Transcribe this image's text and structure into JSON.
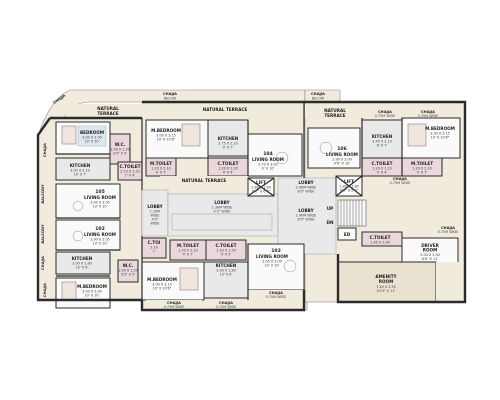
{
  "plan": {
    "chajja_belo_left": {
      "label": "CHAJJA",
      "sub": "BELOW"
    },
    "chajja_belo_right": {
      "label": "CHAJJA",
      "sub": "BELOW"
    },
    "natural_terrace_left": {
      "l1": "NATURAL",
      "l2": "TERRACE"
    },
    "natural_terrace_top": {
      "l1": "NATURAL TERRACE"
    },
    "natural_terrace_right": {
      "l1": "NATURAL",
      "l2": "TERRACE"
    },
    "natural_terrace_mid": {
      "l1": "NATURAL TERRACE"
    },
    "chajja_tl_vertical": "CHAJJA",
    "chajja_tr_1": {
      "label": "CHAJJA",
      "dim": "0.75M WIDE"
    },
    "chajja_tr_2": {
      "label": "CHAJJA",
      "dim": "0.75M WIDE"
    },
    "chajja_r_mid": {
      "label": "CHAJJA",
      "dim": "0.75M WIDE"
    },
    "chajja_r_low": {
      "label": "CHAJJA",
      "dim": "0.75M WIDE"
    },
    "chajja_bl_1": {
      "label": "CHAJJA",
      "dim": "0.75M WIDE"
    },
    "chajja_bl_2": {
      "label": "CHAJJA",
      "dim": "0.75M WIDE"
    },
    "chajja_b_3": {
      "label": "CHAJJA",
      "dim": "0.75M WIDE"
    },
    "left_vertical_labels": [
      "CHAJJA",
      "BALCONY",
      "BALCONY",
      "CHAJJA",
      "CHAJJA"
    ],
    "rooms": {
      "bedroom_105": {
        "name": "BEDROOM",
        "dim": "3.00 X 3.05",
        "imp": "10' X 10'"
      },
      "kitchen_105": {
        "name": "KITCHEN",
        "dim": "3.00 X 2.10",
        "imp": "10' X 7'"
      },
      "living_105": {
        "name": "LIVING ROOM",
        "dim": "3.90 X 3.05",
        "imp": "13' X 10'"
      },
      "living_102": {
        "name": "LIVING ROOM",
        "dim": "3.90 X 3.05",
        "imp": "13' X 10'"
      },
      "kitchen_102": {
        "name": "KITCHEN",
        "dim": "3.00 X 1.80",
        "imp": "10' X 6'"
      },
      "mbed_102": {
        "name": "M.BEDROOM",
        "dim": "3.00 X 3.00",
        "imp": "10' X 10'"
      },
      "wc_105": {
        "name": "W.C.",
        "dim": "1.00 X 1.50",
        "imp": "3'3\" X 5'"
      },
      "wc_102": {
        "name": "W.C.",
        "dim": "1.00 X 1.50",
        "imp": "3'3\" X 5'"
      },
      "ctoilet_105": {
        "name": "C.TOILET",
        "dim": "2.10 X 1.20",
        "imp": "7' X 4'"
      },
      "ctoilet_102": {
        "name": "C.TOI",
        "dim": "2.10",
        "imp": "7'"
      },
      "mbed_104": {
        "name": "M.BEDROOM",
        "dim": "3.00 X 3.15",
        "imp": "10' X 10'6\""
      },
      "kitchen_104": {
        "name": "KITCHEN",
        "dim": "2.75 X 2.10",
        "imp": "9' X 7'"
      },
      "living_104": {
        "name": "LIVING ROOM",
        "dim": "2.70 X 3.00",
        "imp": "9' X 10'"
      },
      "mtoilet_104": {
        "name": "M.TOILET",
        "dim": "1.20 X 2.10",
        "imp": "4' X 7'"
      },
      "ctoilet_104": {
        "name": "C.TOILET",
        "dim": "1.20 X 1.20",
        "imp": "4' X 4'"
      },
      "mbed_103": {
        "name": "M.BEDROOM",
        "dim": "3.00 X 3.15",
        "imp": "10' X 10'6\""
      },
      "kitchen_103": {
        "name": "KITCHEN",
        "dim": "3.00 X 1.80",
        "imp": "10' X 6'"
      },
      "living_103": {
        "name": "LIVING ROOM",
        "dim": "3.05 X 3.00",
        "imp": "10' X 10'"
      },
      "mtoilet_103": {
        "name": "M.TOILET",
        "dim": "1.20 X 2.10",
        "imp": "4' X 7'"
      },
      "ctoilet_103": {
        "name": "C.TOILET",
        "dim": "1.20 X 1.50",
        "imp": "4' X 5'"
      },
      "mbed_106": {
        "name": "M.BEDROOM",
        "dim": "3.00 X 3.15",
        "imp": "10' X 10'6\""
      },
      "kitchen_106": {
        "name": "KITCHEN",
        "dim": "2.45 X 2.10",
        "imp": "8' X 7'"
      },
      "living_106": {
        "name": "LIVING ROOM",
        "dim": "2.90 X 3.00",
        "imp": "9'6\" X 10'"
      },
      "ctoilet_106": {
        "name": "C.TOILET",
        "dim": "1.20 X 1.20",
        "imp": "4' X 4'"
      },
      "mtoilet_106": {
        "name": "M.TOILET",
        "dim": "1.20 X 2.10",
        "imp": "4' X 7'"
      },
      "ctoilet_right": {
        "name": "C.TOILET",
        "dim": "1.45 X 1.40",
        "imp": ""
      },
      "driver_room": {
        "name": "DRIVER",
        "name2": "ROOM",
        "dim": "2.00 X 3.30",
        "imp": "6'6\" X 11'"
      },
      "amenity_room": {
        "name": "AMENITY",
        "name2": "ROOM",
        "dim": "7.40 X 3.30",
        "imp": "24'3\" X 11'"
      }
    },
    "units": {
      "u105": "105",
      "u102": "102",
      "u104": "104",
      "u103": "103",
      "u106": "106"
    },
    "lobby_left": {
      "name": "LOBBY",
      "dim": "1.20M",
      "dim2": "WIDE",
      "imp": "4'0\"",
      "imp2": "WIDE"
    },
    "lobby_center": {
      "name": "LOBBY",
      "dim": "1.30M WIDE",
      "imp": "4'3\" WIDE"
    },
    "lobby_right_top": {
      "name": "LOBBY",
      "dim": "2.40M WIDE",
      "imp": "8'0\" WIDE"
    },
    "lobby_right_mid": {
      "name": "LOBBY",
      "dim": "2.40M WIDE",
      "imp": "8'0\" WIDE"
    },
    "lift_1": {
      "name": "LIFT",
      "dim": "1.80 X 1.80",
      "imp": "6'0\" X 6'0\""
    },
    "lift_2": {
      "name": "LIFT",
      "dim": "1.80 X 1.80",
      "imp": "6'0\" X 6'0\""
    },
    "stair": {
      "up": "UP",
      "dn": "DN"
    },
    "ed_label": "ED",
    "colors": {
      "cream": "#f1ebde",
      "pink": "#ead7dc",
      "blue": "#dde7f0",
      "grey": "#e9e9e9",
      "green": "#d7e6cf",
      "wall": "#2b2b2b"
    }
  }
}
